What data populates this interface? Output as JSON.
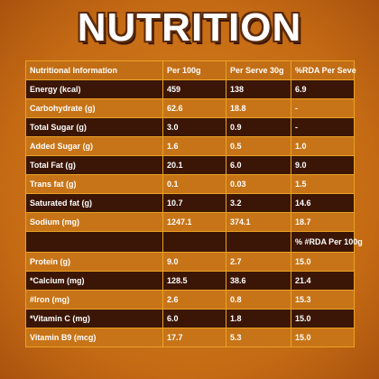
{
  "title": "NUTRITION",
  "table": {
    "header": [
      "Nutritional Information",
      "Per 100g",
      "Per Serve 30g",
      "%RDA Per Seve"
    ],
    "rows": [
      [
        "Energy (kcal)",
        "459",
        "138",
        "6.9"
      ],
      [
        "Carbohydrate (g)",
        "62.6",
        "18.8",
        "-"
      ],
      [
        "Total Sugar (g)",
        "3.0",
        "0.9",
        "-"
      ],
      [
        "Added Sugar (g)",
        "1.6",
        "0.5",
        "1.0"
      ],
      [
        "Total Fat (g)",
        "20.1",
        "6.0",
        "9.0"
      ],
      [
        "Trans fat (g)",
        "0.1",
        "0.03",
        "1.5"
      ],
      [
        "Saturated fat (g)",
        "10.7",
        "3.2",
        "14.6"
      ],
      [
        "Sodium (mg)",
        "1247.1",
        "374.1",
        "18.7"
      ]
    ],
    "subheader": "% #RDA Per 100g",
    "rows2": [
      [
        "Protein (g)",
        "9.0",
        "2.7",
        "15.0"
      ],
      [
        "*Calcium (mg)",
        "128.5",
        "38.6",
        "21.4"
      ],
      [
        "#Iron (mg)",
        "2.6",
        "0.8",
        "15.3"
      ],
      [
        "*Vitamin C (mg)",
        "6.0",
        "1.8",
        "15.0"
      ],
      [
        "Vitamin B9 (mcg)",
        "17.7",
        "5.3",
        "15.0"
      ]
    ]
  }
}
